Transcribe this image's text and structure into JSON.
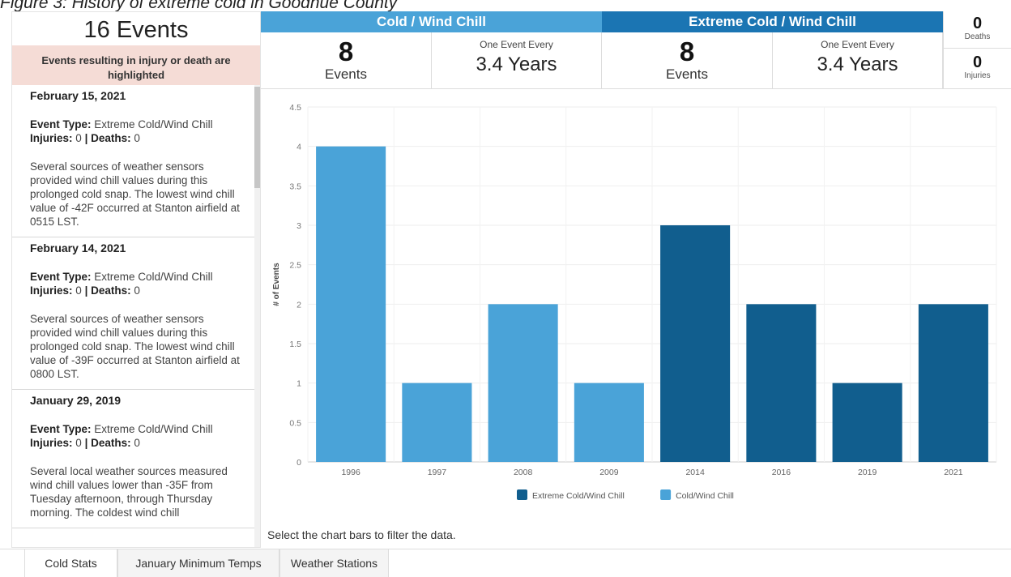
{
  "caption": "Figure 3: History of extreme cold in Goodhue County",
  "left_panel": {
    "title": "16 Events",
    "note": "Events resulting in injury or death are highlighted",
    "event_type_label": "Event Type:",
    "injuries_label": "Injuries:",
    "deaths_label": "Deaths:",
    "separator": "|",
    "events": [
      {
        "date": "February 15, 2021",
        "type": "Extreme Cold/Wind Chill",
        "injuries": "0",
        "deaths": "0",
        "description": "Several sources of weather sensors provided wind chill values during this prolonged cold snap. The lowest wind chill value of -42F occurred at Stanton airfield at 0515 LST."
      },
      {
        "date": "February 14, 2021",
        "type": "Extreme Cold/Wind Chill",
        "injuries": "0",
        "deaths": "0",
        "description": "Several sources of weather sensors provided wind chill values during this prolonged cold snap. The lowest wind chill value of -39F occurred at Stanton airfield at 0800 LST."
      },
      {
        "date": "January 29, 2019",
        "type": "Extreme Cold/Wind Chill",
        "injuries": "0",
        "deaths": "0",
        "description": "Several local weather sources measured wind chill values lower than -35F from Tuesday afternoon, through Thursday morning. The coldest wind chill"
      }
    ]
  },
  "stats": {
    "cold": {
      "title": "Cold / Wind Chill",
      "events": "8",
      "events_label": "Events",
      "freq_label": "One Event Every",
      "freq_value": "3.4 Years"
    },
    "extreme": {
      "title": "Extreme Cold / Wind Chill",
      "events": "8",
      "events_label": "Events",
      "freq_label": "One Event Every",
      "freq_value": "3.4 Years"
    },
    "deaths": {
      "value": "0",
      "label": "Deaths"
    },
    "injuries": {
      "value": "0",
      "label": "Injuries"
    }
  },
  "chart_data": {
    "type": "bar",
    "categories": [
      "1996",
      "1997",
      "2008",
      "2009",
      "2014",
      "2016",
      "2019",
      "2021"
    ],
    "values": [
      4,
      1,
      2,
      1,
      3,
      2,
      1,
      2
    ],
    "series_of_bar": [
      "Cold/Wind Chill",
      "Cold/Wind Chill",
      "Cold/Wind Chill",
      "Cold/Wind Chill",
      "Extreme Cold/Wind Chill",
      "Extreme Cold/Wind Chill",
      "Extreme Cold/Wind Chill",
      "Extreme Cold/Wind Chill"
    ],
    "series": [
      {
        "name": "Extreme Cold/Wind Chill",
        "color": "#115e8e"
      },
      {
        "name": "Cold/Wind Chill",
        "color": "#4aa3d8"
      }
    ],
    "ylabel": "# of Events",
    "ylim": [
      0,
      4.5
    ],
    "yticks": [
      "0",
      "0.5",
      "1",
      "1.5",
      "2",
      "2.5",
      "3",
      "3.5",
      "4",
      "4.5"
    ],
    "grid": true,
    "legend": "bottom"
  },
  "hint": "Select the chart bars to filter the data.",
  "tabs": [
    "Cold Stats",
    "January Minimum Temps",
    "Weather Stations"
  ]
}
